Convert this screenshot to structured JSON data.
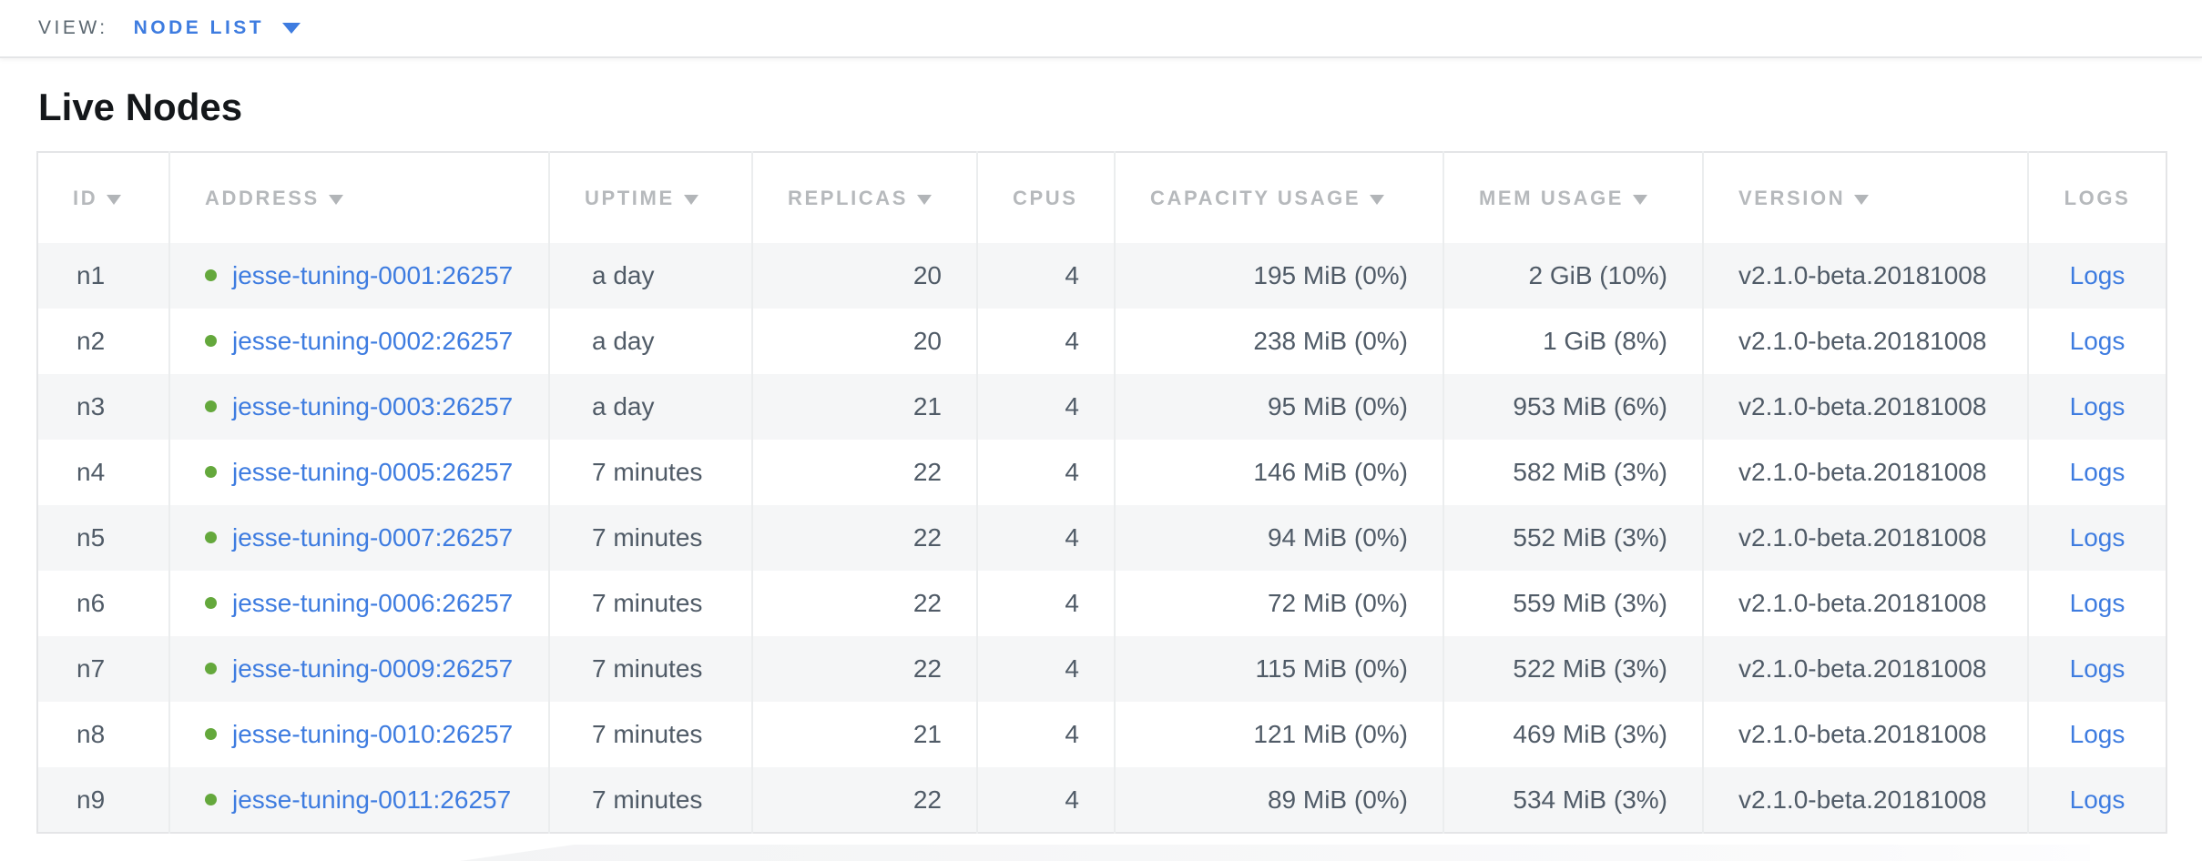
{
  "view_bar": {
    "label": "VIEW:",
    "selected": "NODE LIST"
  },
  "page": {
    "title": "Live Nodes"
  },
  "table": {
    "columns": [
      {
        "label": "ID",
        "sort_arrow": true
      },
      {
        "label": "ADDRESS",
        "sort_arrow": true
      },
      {
        "label": "UPTIME",
        "sort_arrow": true
      },
      {
        "label": "REPLICAS",
        "sort_arrow": true
      },
      {
        "label": "CPUS",
        "sort_arrow": false
      },
      {
        "label": "CAPACITY USAGE",
        "sort_arrow": true
      },
      {
        "label": "MEM USAGE",
        "sort_arrow": true
      },
      {
        "label": "VERSION",
        "sort_arrow": true
      },
      {
        "label": "LOGS",
        "sort_arrow": false
      }
    ],
    "rows": [
      {
        "id": "n1",
        "status": "healthy",
        "address": "jesse-tuning-0001:26257",
        "uptime": "a day",
        "replicas": "20",
        "cpus": "4",
        "capacity_usage": "195 MiB (0%)",
        "mem_usage": "2 GiB (10%)",
        "version": "v2.1.0-beta.20181008",
        "logs_label": "Logs"
      },
      {
        "id": "n2",
        "status": "healthy",
        "address": "jesse-tuning-0002:26257",
        "uptime": "a day",
        "replicas": "20",
        "cpus": "4",
        "capacity_usage": "238 MiB (0%)",
        "mem_usage": "1 GiB (8%)",
        "version": "v2.1.0-beta.20181008",
        "logs_label": "Logs"
      },
      {
        "id": "n3",
        "status": "healthy",
        "address": "jesse-tuning-0003:26257",
        "uptime": "a day",
        "replicas": "21",
        "cpus": "4",
        "capacity_usage": "95 MiB (0%)",
        "mem_usage": "953 MiB (6%)",
        "version": "v2.1.0-beta.20181008",
        "logs_label": "Logs"
      },
      {
        "id": "n4",
        "status": "healthy",
        "address": "jesse-tuning-0005:26257",
        "uptime": "7 minutes",
        "replicas": "22",
        "cpus": "4",
        "capacity_usage": "146 MiB (0%)",
        "mem_usage": "582 MiB (3%)",
        "version": "v2.1.0-beta.20181008",
        "logs_label": "Logs"
      },
      {
        "id": "n5",
        "status": "healthy",
        "address": "jesse-tuning-0007:26257",
        "uptime": "7 minutes",
        "replicas": "22",
        "cpus": "4",
        "capacity_usage": "94 MiB (0%)",
        "mem_usage": "552 MiB (3%)",
        "version": "v2.1.0-beta.20181008",
        "logs_label": "Logs"
      },
      {
        "id": "n6",
        "status": "healthy",
        "address": "jesse-tuning-0006:26257",
        "uptime": "7 minutes",
        "replicas": "22",
        "cpus": "4",
        "capacity_usage": "72 MiB (0%)",
        "mem_usage": "559 MiB (3%)",
        "version": "v2.1.0-beta.20181008",
        "logs_label": "Logs"
      },
      {
        "id": "n7",
        "status": "healthy",
        "address": "jesse-tuning-0009:26257",
        "uptime": "7 minutes",
        "replicas": "22",
        "cpus": "4",
        "capacity_usage": "115 MiB (0%)",
        "mem_usage": "522 MiB (3%)",
        "version": "v2.1.0-beta.20181008",
        "logs_label": "Logs"
      },
      {
        "id": "n8",
        "status": "healthy",
        "address": "jesse-tuning-0010:26257",
        "uptime": "7 minutes",
        "replicas": "21",
        "cpus": "4",
        "capacity_usage": "121 MiB (0%)",
        "mem_usage": "469 MiB (3%)",
        "version": "v2.1.0-beta.20181008",
        "logs_label": "Logs"
      },
      {
        "id": "n9",
        "status": "healthy",
        "address": "jesse-tuning-0011:26257",
        "uptime": "7 minutes",
        "replicas": "22",
        "cpus": "4",
        "capacity_usage": "89 MiB (0%)",
        "mem_usage": "534 MiB (3%)",
        "version": "v2.1.0-beta.20181008",
        "logs_label": "Logs"
      }
    ]
  },
  "colors": {
    "accent_blue": "#3e7ce0",
    "status_green": "#64a83c",
    "header_gray": "#b6b9bc",
    "cell_slate": "#505b67",
    "zebra_row": "#f5f6f7"
  }
}
